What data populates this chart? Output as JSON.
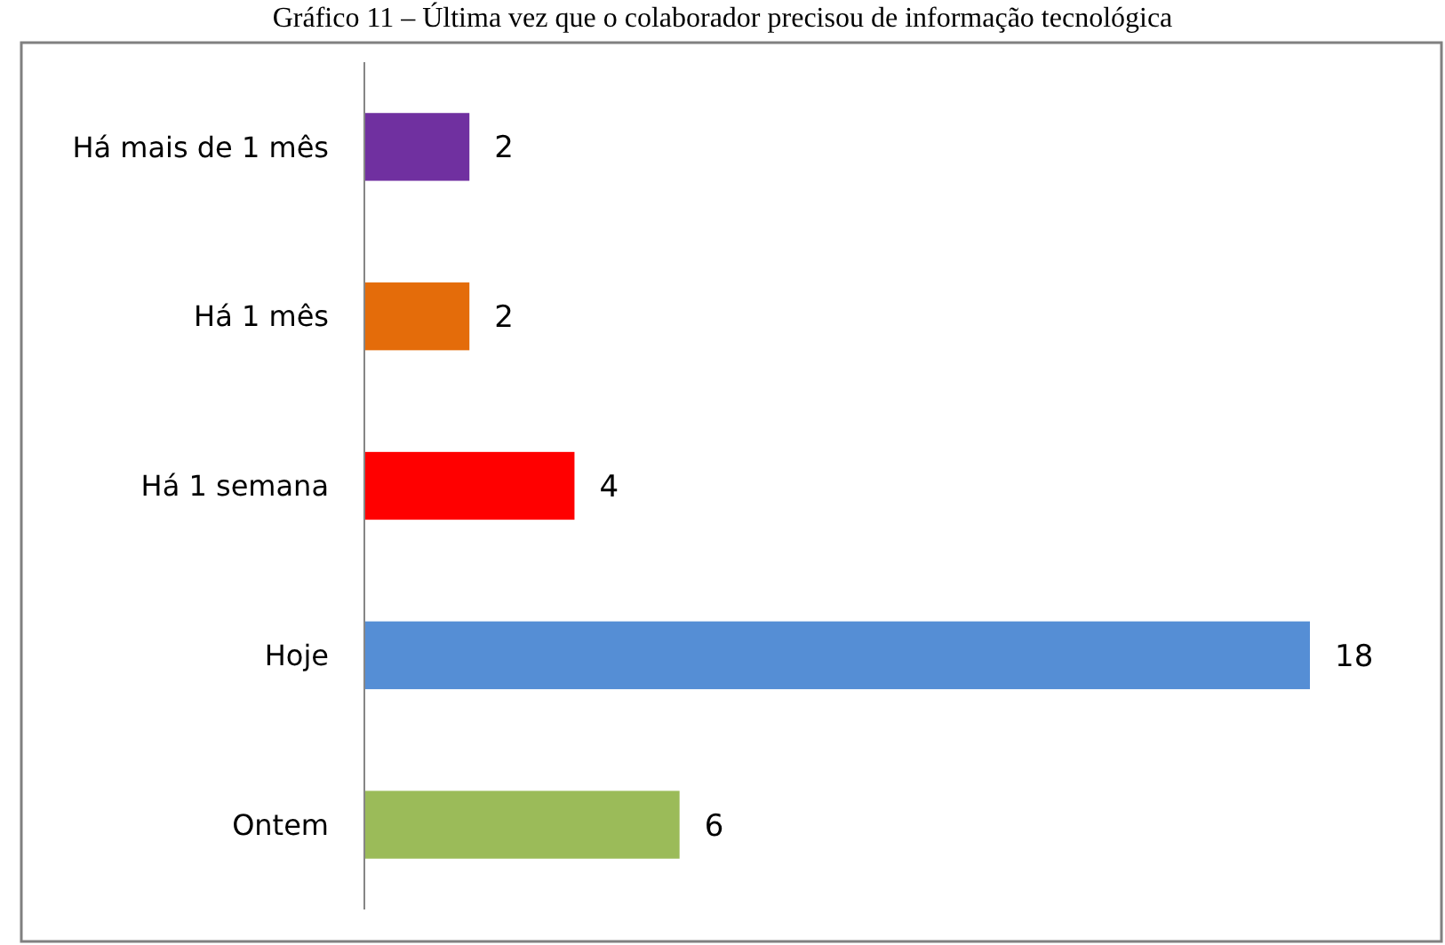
{
  "chart_data": {
    "type": "bar",
    "orientation": "horizontal",
    "title": "Gráfico 11 – Última vez que o colaborador precisou de informação tecnológica",
    "categories": [
      "Há mais de 1 mês",
      "Há 1 mês",
      "Há 1 semana",
      "Hoje",
      "Ontem"
    ],
    "values": [
      2,
      2,
      4,
      18,
      6
    ],
    "colors": [
      "#7030a0",
      "#e46c0a",
      "#ff0000",
      "#558ed5",
      "#9bbb59"
    ],
    "data_labels": true
  }
}
